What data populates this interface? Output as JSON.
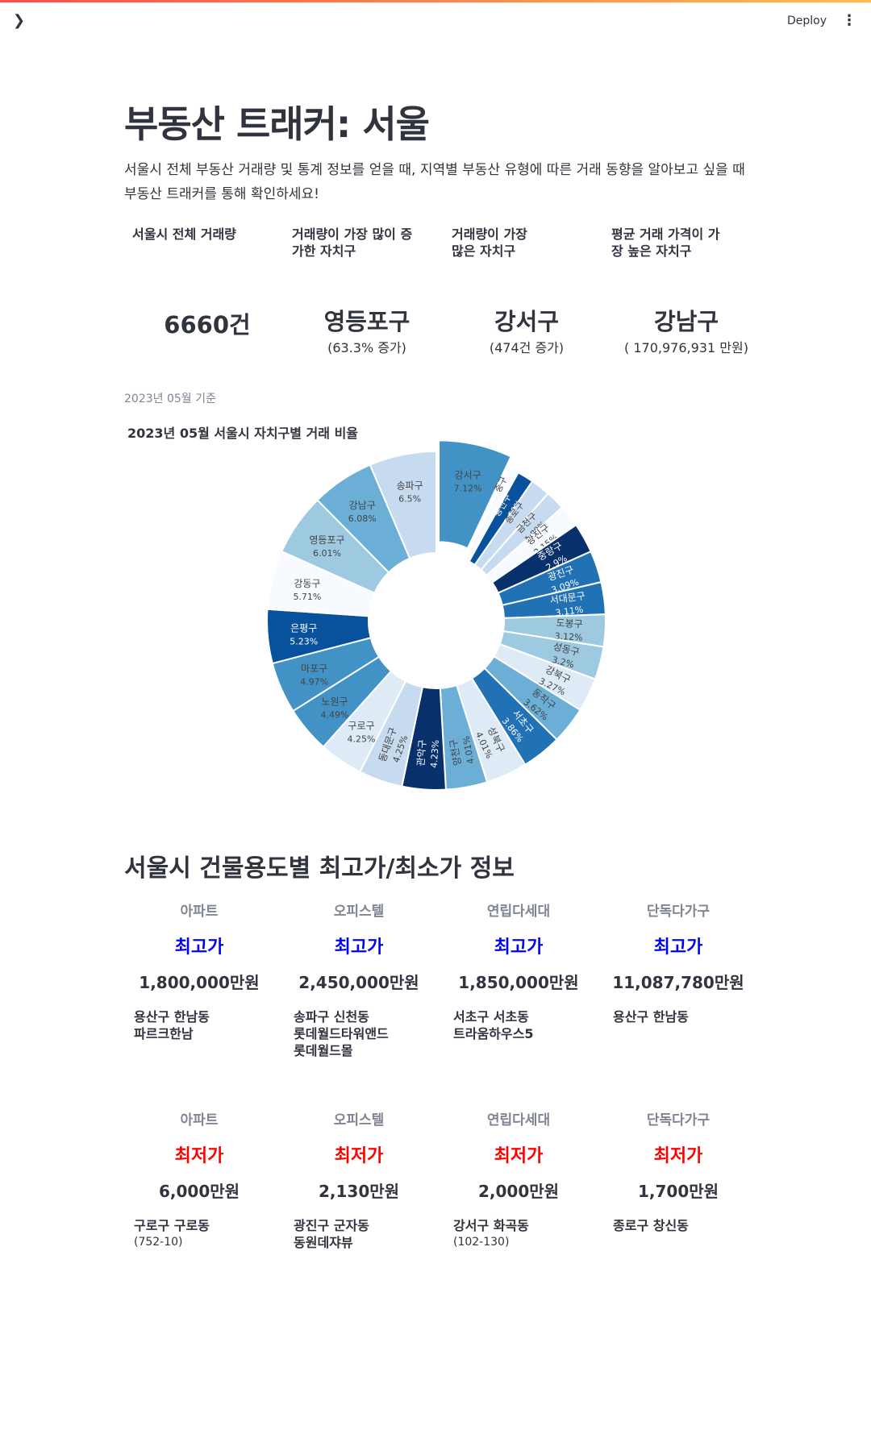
{
  "header": {
    "deploy_label": "Deploy"
  },
  "page": {
    "title": "부동산 트래커: 서울",
    "description": "서울시 전체 부동산 거래량 및 통계 정보를 얻을 때, 지역별 부동산 유형에 따른 거래 동향을 알아보고 싶을 때 부동산 트래커를 통해 확인하세요!"
  },
  "metrics": [
    {
      "label": "서울시 전체 거래량",
      "value": "6660건",
      "sub": ""
    },
    {
      "label": "거래량이 가장 많이 증가한 자치구",
      "value": "영등포구",
      "sub": "(63.3% 증가)"
    },
    {
      "label": "거래량이 가장 많은 자치구",
      "value": "강서구",
      "sub": "(474건 증가)"
    },
    {
      "label": "평균 거래 가격이 가장 높은 자치구",
      "value": "강남구",
      "sub": "( 170,976,931 만원)"
    }
  ],
  "basis_date": "2023년 05월 기준",
  "chart_data": {
    "type": "pie",
    "title": "2023년 05월 서울시 자치구별 거래 비율",
    "categories": [
      "강서구",
      "중구",
      "용산구",
      "종로구",
      "금천구",
      "광진구 ",
      "중랑구",
      "광진구",
      "서대문구",
      "도봉구",
      "성동구",
      "강북구",
      "동작구",
      "서초구",
      "성북구",
      "양천구",
      "관악구",
      "동대문구",
      "구로구",
      "노원구",
      "마포구",
      "은평구",
      "강동구",
      "영등포구",
      "강남구",
      "송파구"
    ],
    "values": [
      7.12,
      1.05,
      1.59,
      1.89,
      1.89,
      2.15,
      2.9,
      3.09,
      3.11,
      3.12,
      3.2,
      3.27,
      3.62,
      3.86,
      4.01,
      4.01,
      4.23,
      4.25,
      4.25,
      4.49,
      4.97,
      5.23,
      5.71,
      6.01,
      6.08,
      6.5
    ],
    "labels": [
      "7.12%",
      "",
      "1.59%",
      "",
      "1.89%",
      "2.15%",
      "2.9%",
      "3.09%",
      "3.11%",
      "3.12%",
      "3.2%",
      "3.27%",
      "3.62%",
      "3.86%",
      "4.01%",
      "4.01%",
      "4.23%",
      "4.25%",
      "4.25%",
      "4.49%",
      "4.97%",
      "5.23%",
      "5.71%",
      "6.01%",
      "6.08%",
      "6.5%"
    ],
    "colors": [
      "#4292c6",
      "#f7fbff",
      "#08519c",
      "#c6dbef",
      "#c6dbef",
      "#f7fbff",
      "#08306b",
      "#2171b5",
      "#2171b5",
      "#9ecae1",
      "#9ecae1",
      "#deebf7",
      "#6baed6",
      "#2171b5",
      "#deebf7",
      "#6baed6",
      "#08306b",
      "#c6dbef",
      "#deebf7",
      "#4292c6",
      "#4292c6",
      "#08519c",
      "#f7fbff",
      "#9ecae1",
      "#6baed6",
      "#c6dbef"
    ]
  },
  "price_section": {
    "title": "서울시 건물용도별 최고가/최소가 정보",
    "max": [
      {
        "type": "아파트",
        "kind": "최고가",
        "price": "1,800,000만원",
        "loc": [
          "용산구 한남동",
          "파르크한남"
        ],
        "loc_small": ""
      },
      {
        "type": "오피스텔",
        "kind": "최고가",
        "price": "2,450,000만원",
        "loc": [
          "송파구 신천동",
          "롯데월드타워앤드",
          "롯데월드몰"
        ],
        "loc_small": ""
      },
      {
        "type": "연립다세대",
        "kind": "최고가",
        "price": "1,850,000만원",
        "loc": [
          "서초구 서초동",
          "트라움하우스5"
        ],
        "loc_small": ""
      },
      {
        "type": "단독다가구",
        "kind": "최고가",
        "price": "11,087,780만원",
        "loc": [
          "용산구 한남동"
        ],
        "loc_small": ""
      }
    ],
    "min": [
      {
        "type": "아파트",
        "kind": "최저가",
        "price": "6,000만원",
        "loc": [
          "구로구 구로동"
        ],
        "loc_small": "(752-10)"
      },
      {
        "type": "오피스텔",
        "kind": "최저가",
        "price": "2,130만원",
        "loc": [
          "광진구 군자동",
          "동원데쟈뷰"
        ],
        "loc_small": ""
      },
      {
        "type": "연립다세대",
        "kind": "최저가",
        "price": "2,000만원",
        "loc": [
          "강서구 화곡동"
        ],
        "loc_small": "(102-130)"
      },
      {
        "type": "단독다가구",
        "kind": "최저가",
        "price": "1,700만원",
        "loc": [
          "종로구 창신동"
        ],
        "loc_small": ""
      }
    ]
  }
}
